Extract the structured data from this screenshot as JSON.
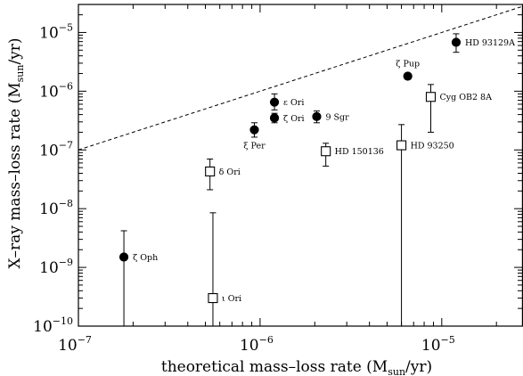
{
  "chart_data": {
    "type": "scatter",
    "xlabel": "theoretical mass–loss rate (M",
    "xlabel_sub": "sun",
    "xlabel_tail": "/yr)",
    "ylabel": "X–ray mass–loss rate (M",
    "ylabel_sub": "sun",
    "ylabel_tail": "/yr)",
    "x_scale": "log",
    "y_scale": "log",
    "xlim": [
      1e-07,
      2.8e-05
    ],
    "ylim": [
      1e-10,
      3e-05
    ],
    "x_ticks": [
      {
        "value": 1e-07,
        "base": "10",
        "exp": "−7"
      },
      {
        "value": 1e-06,
        "base": "10",
        "exp": "−6"
      },
      {
        "value": 1e-05,
        "base": "10",
        "exp": "−5"
      }
    ],
    "y_ticks": [
      {
        "value": 1e-10,
        "base": "10",
        "exp": "−10"
      },
      {
        "value": 1e-09,
        "base": "10",
        "exp": "−9"
      },
      {
        "value": 1e-08,
        "base": "10",
        "exp": "−8"
      },
      {
        "value": 1e-07,
        "base": "10",
        "exp": "−7"
      },
      {
        "value": 1e-06,
        "base": "10",
        "exp": "−6"
      },
      {
        "value": 1e-05,
        "base": "10",
        "exp": "−5"
      }
    ],
    "reference_line": {
      "style": "dashed",
      "relation": "y = x"
    },
    "grid": false,
    "series": [
      {
        "marker": "filled-circle",
        "points": [
          {
            "label": "ζ Oph",
            "x": 1.78e-07,
            "y": 1.5e-09,
            "y_lo": 5e-11,
            "y_hi": 4.2e-09,
            "label_pos": "right"
          },
          {
            "label": "ξ Per",
            "x": 9.3e-07,
            "y": 2.2e-07,
            "y_lo": 1.65e-07,
            "y_hi": 2.9e-07,
            "label_pos": "below"
          },
          {
            "label": "ε Ori",
            "x": 1.2e-06,
            "y": 6.5e-07,
            "y_lo": 4.8e-07,
            "y_hi": 9e-07,
            "label_pos": "right"
          },
          {
            "label": "ζ Ori",
            "x": 1.2e-06,
            "y": 3.5e-07,
            "y_lo": 2.9e-07,
            "y_hi": 4.2e-07,
            "label_pos": "right"
          },
          {
            "label": "9 Sgr",
            "x": 2.05e-06,
            "y": 3.7e-07,
            "y_lo": 2.9e-07,
            "y_hi": 4.6e-07,
            "label_pos": "right"
          },
          {
            "label": "ζ Pup",
            "x": 6.5e-06,
            "y": 1.8e-06,
            "y_lo": 1.6e-06,
            "y_hi": 2e-06,
            "label_pos": "above"
          },
          {
            "label": "HD 93129A",
            "x": 1.2e-05,
            "y": 6.8e-06,
            "y_lo": 4.6e-06,
            "y_hi": 9.5e-06,
            "label_pos": "right"
          }
        ]
      },
      {
        "marker": "open-square",
        "points": [
          {
            "label": "δ Ori",
            "x": 5.3e-07,
            "y": 4.3e-08,
            "y_lo": 2.1e-08,
            "y_hi": 7e-08,
            "label_pos": "right"
          },
          {
            "label": "ι Ori",
            "x": 5.5e-07,
            "y": 3e-10,
            "y_lo": 5e-11,
            "y_hi": 8.5e-09,
            "label_pos": "right"
          },
          {
            "label": "HD 150136",
            "x": 2.3e-06,
            "y": 9.5e-08,
            "y_lo": 5.3e-08,
            "y_hi": 1.3e-07,
            "label_pos": "right"
          },
          {
            "label": "HD 93250",
            "x": 6e-06,
            "y": 1.2e-07,
            "y_lo": 5e-11,
            "y_hi": 2.7e-07,
            "label_pos": "right"
          },
          {
            "label": "Cyg OB2 8A",
            "x": 8.7e-06,
            "y": 8e-07,
            "y_lo": 2e-07,
            "y_hi": 1.3e-06,
            "label_pos": "right"
          }
        ]
      }
    ]
  }
}
